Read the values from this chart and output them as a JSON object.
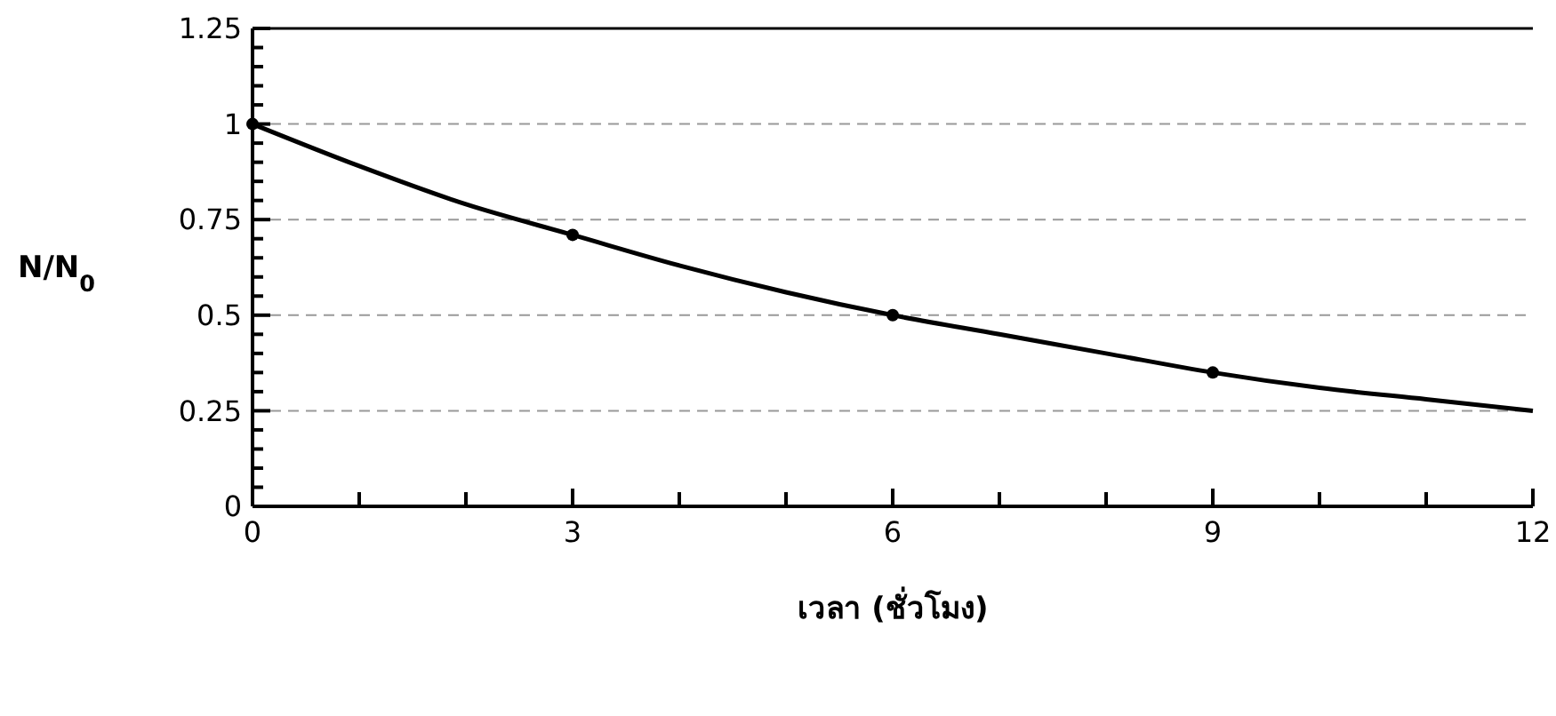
{
  "chart_data": {
    "type": "line",
    "xlabel": "เวลา (ชั่วโมง)",
    "ylabel": "N/N$_{0}$",
    "xlim": [
      0,
      12
    ],
    "ylim": [
      0,
      1.25
    ],
    "xticks": [
      0,
      {
        "value": 1,
        "label": null
      },
      {
        "value": 2,
        "label": null
      },
      3,
      {
        "value": 4,
        "label": null
      },
      {
        "value": 5,
        "label": null
      },
      6,
      {
        "value": 7,
        "label": null
      },
      {
        "value": 8,
        "label": null
      },
      9,
      {
        "value": 10,
        "label": null
      },
      {
        "value": 11,
        "label": null
      },
      12
    ],
    "yticks": [
      0,
      {
        "value": 0.05,
        "label": null
      },
      {
        "value": 0.1,
        "label": null
      },
      {
        "value": 0.15,
        "label": null
      },
      {
        "value": 0.2,
        "label": null
      },
      0.25,
      {
        "value": 0.3,
        "label": null
      },
      {
        "value": 0.35,
        "label": null
      },
      {
        "value": 0.4,
        "label": null
      },
      {
        "value": 0.45,
        "label": null
      },
      0.5,
      {
        "value": 0.55,
        "label": null
      },
      {
        "value": 0.6,
        "label": null
      },
      {
        "value": 0.65,
        "label": null
      },
      {
        "value": 0.7,
        "label": null
      },
      0.75,
      {
        "value": 0.8,
        "label": null
      },
      {
        "value": 0.85,
        "label": null
      },
      {
        "value": 0.9,
        "label": null
      },
      {
        "value": 0.95,
        "label": null
      },
      1,
      {
        "value": 1.05,
        "label": null
      },
      {
        "value": 1.1,
        "label": null
      },
      {
        "value": 1.15,
        "label": null
      },
      {
        "value": 1.2,
        "label": null
      },
      1.25
    ],
    "grid": "y",
    "line_style": "solid",
    "series": [
      {
        "color": "#000000",
        "marker": "none",
        "x": [
          0,
          1,
          2,
          3,
          4,
          5,
          6,
          7,
          8,
          9,
          10,
          11,
          12
        ],
        "values": [
          1,
          0.89,
          0.79,
          0.71,
          0.63,
          0.56,
          0.5,
          0.45,
          0.4,
          0.35,
          0.31,
          0.28,
          0.25
        ]
      },
      {
        "type": "scatter",
        "color": "#000000",
        "marker": "circle",
        "x": [
          0,
          3,
          6,
          9
        ],
        "values": [
          1,
          0.71,
          0.5,
          0.35
        ]
      }
    ]
  }
}
